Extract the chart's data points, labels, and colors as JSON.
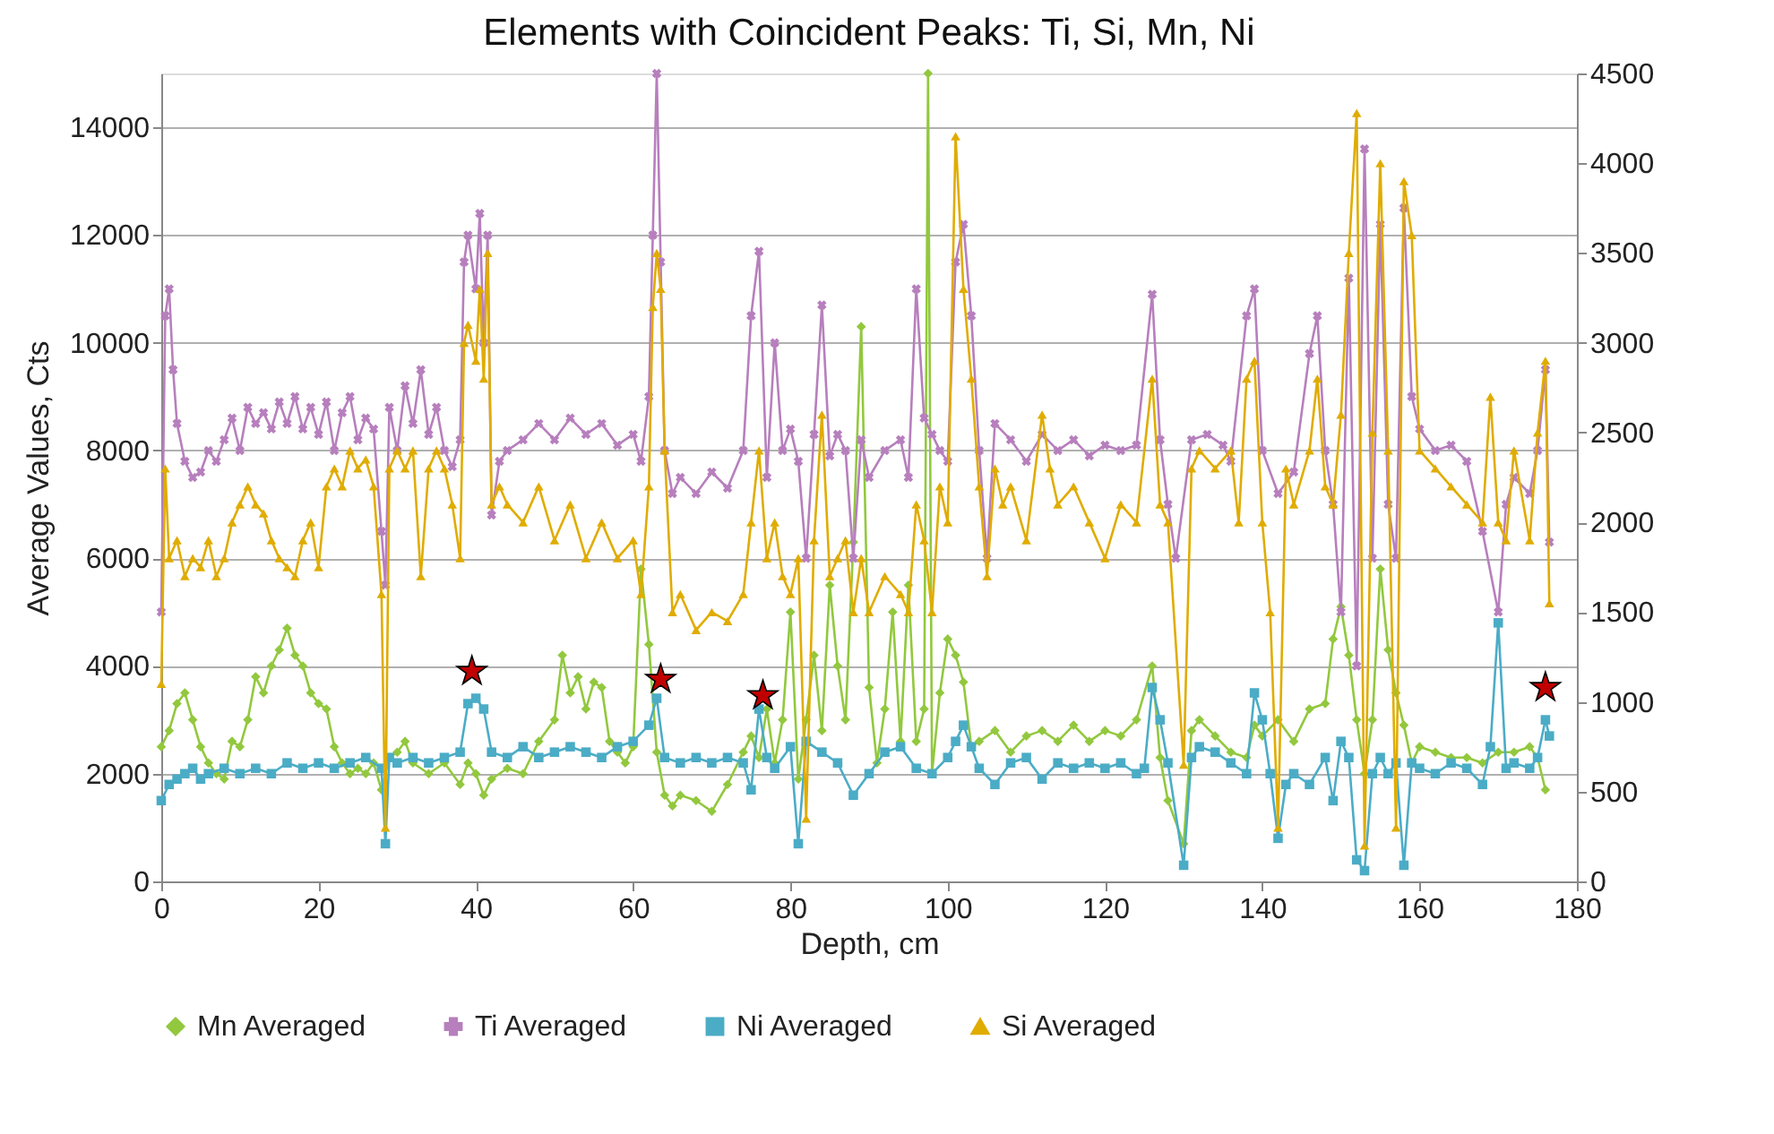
{
  "chart_data": {
    "type": "line",
    "title": "Elements with Coincident Peaks: Ti, Si, Mn, Ni",
    "xlabel": "Depth, cm",
    "ylabel": "Average  Values, Cts",
    "xlim": [
      0,
      180
    ],
    "xticks": [
      0,
      20,
      40,
      60,
      80,
      100,
      120,
      140,
      160,
      180
    ],
    "ylim": [
      0,
      15000
    ],
    "yticks": [
      0,
      2000,
      4000,
      6000,
      8000,
      10000,
      12000,
      14000
    ],
    "y2lim": [
      0,
      4500
    ],
    "y2ticks": [
      0,
      500,
      1000,
      1500,
      2000,
      2500,
      3000,
      3500,
      4000,
      4500
    ],
    "grid": "y",
    "legend": "bottom",
    "line_style": "solid",
    "series": [
      {
        "name": "Mn Averaged",
        "color": "#92c83e",
        "marker": "diamond",
        "x": [
          0,
          1,
          2,
          3,
          4,
          5,
          6,
          7,
          8,
          9,
          10,
          11,
          12,
          13,
          14,
          15,
          16,
          17,
          18,
          19,
          20,
          21,
          22,
          23,
          24,
          25,
          26,
          27,
          28,
          29,
          30,
          31,
          32,
          34,
          36,
          38,
          39,
          40,
          41,
          42,
          44,
          46,
          48,
          50,
          51,
          52,
          53,
          54,
          55,
          56,
          57,
          58,
          59,
          60,
          61,
          62,
          63,
          64,
          65,
          66,
          68,
          70,
          72,
          74,
          75,
          76,
          77,
          78,
          79,
          80,
          81,
          82,
          83,
          84,
          85,
          86,
          87,
          88,
          89,
          90,
          91,
          92,
          93,
          94,
          95,
          96,
          97,
          97.5,
          98,
          99,
          100,
          101,
          102,
          103,
          104,
          106,
          108,
          110,
          112,
          114,
          116,
          118,
          120,
          122,
          124,
          126,
          127,
          128,
          130,
          131,
          132,
          134,
          136,
          138,
          139,
          140,
          142,
          144,
          146,
          148,
          149,
          150,
          151,
          152,
          153,
          154,
          155,
          156,
          157,
          158,
          159,
          160,
          162,
          164,
          166,
          168,
          170,
          172,
          174,
          175,
          176
        ],
        "values": [
          2500,
          2800,
          3300,
          3500,
          3000,
          2500,
          2200,
          2000,
          1900,
          2600,
          2500,
          3000,
          3800,
          3500,
          4000,
          4300,
          4700,
          4200,
          4000,
          3500,
          3300,
          3200,
          2500,
          2200,
          2000,
          2100,
          2000,
          2200,
          1700,
          2300,
          2400,
          2600,
          2200,
          2000,
          2200,
          1800,
          2200,
          2000,
          1600,
          1900,
          2100,
          2000,
          2600,
          3000,
          4200,
          3500,
          3800,
          3200,
          3700,
          3600,
          2600,
          2400,
          2200,
          2500,
          5800,
          4400,
          2400,
          1600,
          1400,
          1600,
          1500,
          1300,
          1800,
          2400,
          2700,
          2300,
          3200,
          2200,
          3000,
          5000,
          1900,
          3000,
          4200,
          2800,
          5500,
          4000,
          3000,
          6300,
          10300,
          3600,
          2200,
          3200,
          5000,
          2600,
          5500,
          2600,
          3200,
          15000,
          2000,
          3500,
          4500,
          4200,
          3700,
          2500,
          2600,
          2800,
          2400,
          2700,
          2800,
          2600,
          2900,
          2600,
          2800,
          2700,
          3000,
          4000,
          2300,
          1500,
          700,
          2800,
          3000,
          2700,
          2400,
          2300,
          2900,
          2700,
          3000,
          2600,
          3200,
          3300,
          4500,
          5100,
          4200,
          3000,
          2000,
          3000,
          5800,
          4300,
          3500,
          2900,
          2200,
          2500,
          2400,
          2300,
          2300,
          2200,
          2400,
          2400,
          2500,
          2300,
          1700
        ]
      },
      {
        "name": "Ti Averaged",
        "color": "#b77fbd",
        "marker": "cross",
        "x": [
          0,
          0.5,
          1,
          1.5,
          2,
          3,
          4,
          5,
          6,
          7,
          8,
          9,
          10,
          11,
          12,
          13,
          14,
          15,
          16,
          17,
          18,
          19,
          20,
          21,
          22,
          23,
          24,
          25,
          26,
          27,
          28,
          28.5,
          29,
          30,
          31,
          32,
          33,
          34,
          35,
          36,
          37,
          38,
          38.5,
          39,
          40,
          40.5,
          41,
          41.5,
          42,
          43,
          44,
          46,
          48,
          50,
          52,
          54,
          56,
          58,
          60,
          61,
          62,
          62.5,
          63,
          63.5,
          64,
          65,
          66,
          68,
          70,
          72,
          74,
          75,
          76,
          77,
          78,
          79,
          80,
          81,
          82,
          83,
          84,
          85,
          86,
          87,
          88,
          89,
          90,
          92,
          94,
          95,
          96,
          97,
          98,
          99,
          100,
          101,
          102,
          103,
          104,
          105,
          106,
          108,
          110,
          112,
          114,
          116,
          118,
          120,
          122,
          124,
          126,
          127,
          128,
          129,
          131,
          133,
          135,
          136,
          138,
          139,
          140,
          142,
          144,
          146,
          147,
          148,
          149,
          150,
          151,
          152,
          153,
          154,
          155,
          156,
          157,
          158,
          159,
          160,
          162,
          164,
          166,
          168,
          170,
          171,
          172,
          174,
          175,
          176,
          176.5
        ],
        "values": [
          5000,
          10500,
          11000,
          9500,
          8500,
          7800,
          7500,
          7600,
          8000,
          7800,
          8200,
          8600,
          8000,
          8800,
          8500,
          8700,
          8400,
          8900,
          8500,
          9000,
          8400,
          8800,
          8300,
          8900,
          8000,
          8700,
          9000,
          8200,
          8600,
          8400,
          6500,
          5500,
          8800,
          8000,
          9200,
          8500,
          9500,
          8300,
          8800,
          8000,
          7700,
          8200,
          11500,
          12000,
          11000,
          12400,
          10000,
          12000,
          6800,
          7800,
          8000,
          8200,
          8500,
          8200,
          8600,
          8300,
          8500,
          8100,
          8300,
          7800,
          9000,
          12000,
          15000,
          11500,
          8000,
          7200,
          7500,
          7200,
          7600,
          7300,
          8000,
          10500,
          11700,
          7500,
          10000,
          8000,
          8400,
          7800,
          6000,
          8300,
          10700,
          7900,
          8300,
          8000,
          6000,
          8200,
          7500,
          8000,
          8200,
          7500,
          11000,
          8600,
          8300,
          8000,
          7800,
          11500,
          12200,
          10500,
          8000,
          6000,
          8500,
          8200,
          7800,
          8300,
          8000,
          8200,
          7900,
          8100,
          8000,
          8100,
          10900,
          8200,
          7000,
          6000,
          8200,
          8300,
          8100,
          7800,
          10500,
          11000,
          8000,
          7200,
          7600,
          9800,
          10500,
          8000,
          7000,
          5000,
          11200,
          4000,
          13600,
          6000,
          12200,
          7000,
          6000,
          12500,
          9000,
          8400,
          8000,
          8100,
          7800,
          6500,
          5000,
          7000,
          7500,
          7200,
          8000,
          9500,
          6300
        ]
      },
      {
        "name": "Ni Averaged",
        "color": "#4bacc6",
        "marker": "square",
        "x": [
          0,
          1,
          2,
          3,
          4,
          5,
          6,
          8,
          10,
          12,
          14,
          16,
          18,
          20,
          22,
          24,
          26,
          28,
          28.5,
          29,
          30,
          32,
          34,
          36,
          38,
          39,
          40,
          41,
          42,
          44,
          46,
          48,
          50,
          52,
          54,
          56,
          58,
          60,
          62,
          63,
          64,
          66,
          68,
          70,
          72,
          74,
          75,
          76,
          77,
          78,
          80,
          81,
          82,
          84,
          86,
          88,
          90,
          92,
          94,
          96,
          98,
          100,
          101,
          102,
          103,
          104,
          106,
          108,
          110,
          112,
          114,
          116,
          118,
          120,
          122,
          124,
          125,
          126,
          127,
          128,
          130,
          131,
          132,
          134,
          136,
          138,
          139,
          140,
          141,
          142,
          143,
          144,
          146,
          148,
          149,
          150,
          151,
          152,
          153,
          154,
          155,
          156,
          157,
          158,
          159,
          160,
          162,
          164,
          166,
          168,
          169,
          170,
          171,
          172,
          174,
          175,
          176,
          176.5
        ],
        "values": [
          1500,
          1800,
          1900,
          2000,
          2100,
          1900,
          2000,
          2100,
          2000,
          2100,
          2000,
          2200,
          2100,
          2200,
          2100,
          2200,
          2300,
          2100,
          700,
          2300,
          2200,
          2300,
          2200,
          2300,
          2400,
          3300,
          3400,
          3200,
          2400,
          2300,
          2500,
          2300,
          2400,
          2500,
          2400,
          2300,
          2500,
          2600,
          2900,
          3400,
          2300,
          2200,
          2300,
          2200,
          2300,
          2200,
          1700,
          3200,
          2300,
          2100,
          2500,
          700,
          2600,
          2400,
          2200,
          1600,
          2000,
          2400,
          2500,
          2100,
          2000,
          2300,
          2600,
          2900,
          2500,
          2100,
          1800,
          2200,
          2300,
          1900,
          2200,
          2100,
          2200,
          2100,
          2200,
          2000,
          2100,
          3600,
          3000,
          2200,
          300,
          2300,
          2500,
          2400,
          2200,
          2000,
          3500,
          3000,
          2000,
          800,
          1800,
          2000,
          1800,
          2300,
          1500,
          2600,
          2300,
          400,
          200,
          2000,
          2300,
          2000,
          2200,
          300,
          2200,
          2100,
          2000,
          2200,
          2100,
          1800,
          2500,
          4800,
          2100,
          2200,
          2100,
          2300,
          3000,
          2700
        ]
      },
      {
        "name": "Si Averaged",
        "color": "#e0ac00",
        "marker": "triangle",
        "axis": "y2",
        "x": [
          0,
          0.5,
          1,
          2,
          3,
          4,
          5,
          6,
          7,
          8,
          9,
          10,
          11,
          12,
          13,
          14,
          15,
          16,
          17,
          18,
          19,
          20,
          21,
          22,
          23,
          24,
          25,
          26,
          27,
          28,
          28.5,
          29,
          30,
          31,
          32,
          33,
          34,
          35,
          36,
          37,
          38,
          38.5,
          39,
          40,
          40.5,
          41,
          41.5,
          42,
          43,
          44,
          46,
          48,
          50,
          52,
          54,
          56,
          58,
          60,
          61,
          62,
          62.5,
          63,
          63.5,
          64,
          65,
          66,
          68,
          70,
          72,
          74,
          75,
          76,
          77,
          78,
          79,
          80,
          81,
          82,
          83,
          84,
          85,
          86,
          87,
          88,
          89,
          90,
          92,
          94,
          95,
          96,
          97,
          98,
          99,
          100,
          101,
          102,
          103,
          104,
          105,
          106,
          107,
          108,
          110,
          112,
          113,
          114,
          116,
          118,
          120,
          122,
          124,
          126,
          127,
          128,
          130,
          131,
          132,
          134,
          136,
          137,
          138,
          139,
          140,
          141,
          142,
          143,
          144,
          146,
          147,
          148,
          149,
          150,
          151,
          152,
          153,
          154,
          155,
          156,
          157,
          158,
          159,
          160,
          162,
          164,
          166,
          168,
          169,
          170,
          171,
          172,
          174,
          175,
          176,
          176.5
        ],
        "values": [
          1100,
          2300,
          1800,
          1900,
          1700,
          1800,
          1750,
          1900,
          1700,
          1800,
          2000,
          2100,
          2200,
          2100,
          2050,
          1900,
          1800,
          1750,
          1700,
          1900,
          2000,
          1750,
          2200,
          2300,
          2200,
          2400,
          2300,
          2350,
          2200,
          1600,
          300,
          2300,
          2400,
          2300,
          2400,
          1700,
          2300,
          2400,
          2300,
          2100,
          1800,
          3000,
          3100,
          2900,
          3300,
          2800,
          3500,
          2100,
          2200,
          2100,
          2000,
          2200,
          1900,
          2100,
          1800,
          2000,
          1800,
          1900,
          1600,
          2200,
          3200,
          3500,
          3300,
          2400,
          1500,
          1600,
          1400,
          1500,
          1450,
          1600,
          2000,
          2400,
          1800,
          2000,
          1700,
          1600,
          1800,
          350,
          1900,
          2600,
          1700,
          1800,
          1900,
          1500,
          1800,
          1500,
          1700,
          1600,
          1500,
          2100,
          1900,
          1500,
          2200,
          2000,
          4150,
          3300,
          2800,
          2200,
          1700,
          2300,
          2100,
          2200,
          1900,
          2600,
          2300,
          2100,
          2200,
          2000,
          1800,
          2100,
          2000,
          2800,
          2100,
          2000,
          650,
          2300,
          2400,
          2300,
          2400,
          2000,
          2800,
          2900,
          2000,
          1500,
          300,
          2300,
          2100,
          2400,
          2800,
          2200,
          2100,
          2600,
          3500,
          4280,
          200,
          2500,
          4000,
          2400,
          300,
          3900,
          3600,
          2400,
          2300,
          2200,
          2100,
          2000,
          2700,
          2000,
          1900,
          2400,
          1900,
          2500,
          2900,
          1550
        ]
      },
      {
        "type": "scatter",
        "color": "#c00000",
        "marker": "star",
        "x": [
          39.5,
          63.5,
          76.5,
          176
        ],
        "values": [
          3900,
          3750,
          3450,
          3600
        ]
      }
    ]
  }
}
